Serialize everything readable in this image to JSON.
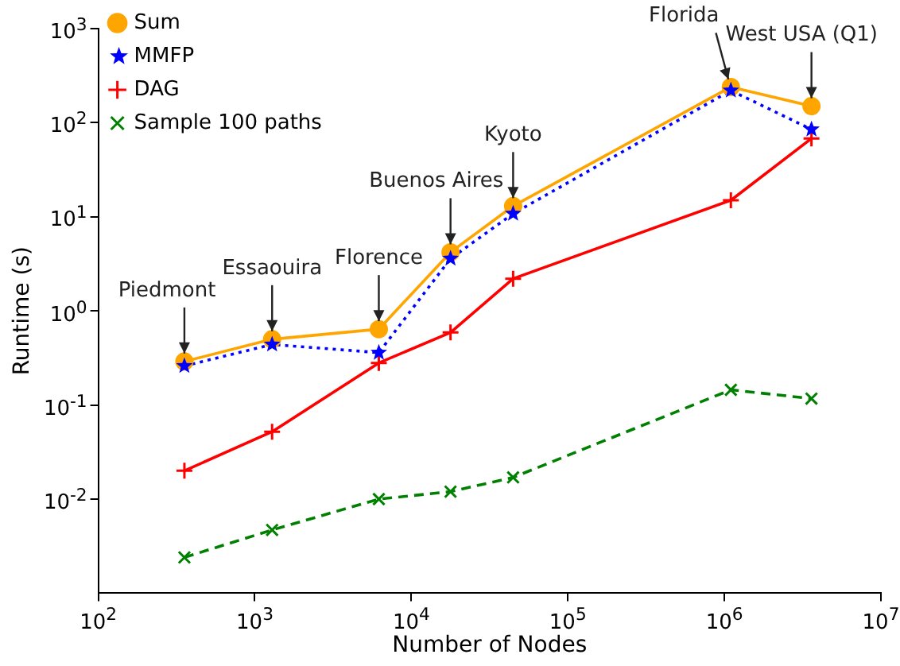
{
  "chart_data": {
    "type": "line",
    "xlabel": "Number of Nodes",
    "ylabel": "Runtime (s)",
    "log": "xy",
    "grid": false,
    "legend": "top left",
    "xlim": [
      100,
      10000000
    ],
    "xticks": [
      {
        "value": 100,
        "label": "10$^{2}$"
      },
      {
        "value": 1000,
        "label": "10$^{3}$"
      },
      {
        "value": 10000,
        "label": "10$^{4}$"
      },
      {
        "value": 100000,
        "label": "10$^{5}$"
      },
      {
        "value": 1000000,
        "label": "10$^{6}$"
      },
      {
        "value": 10000000,
        "label": "10$^{7}$"
      }
    ],
    "ylim": [
      0.001,
      1000
    ],
    "yticks": [
      {
        "value": 0.01,
        "label": "10$^{-2}$"
      },
      {
        "value": 0.1,
        "label": "10$^{-1}$"
      },
      {
        "value": 1,
        "label": "10$^{0}$"
      },
      {
        "value": 10,
        "label": "10$^{1}$"
      },
      {
        "value": 100,
        "label": "10$^{2}$"
      },
      {
        "value": 1000,
        "label": "10$^{3}$"
      }
    ],
    "x": [
      355,
      1290,
      6200,
      17800,
      44700,
      1100000,
      3600000
    ],
    "series": [
      {
        "name": "Sum",
        "color": "#ffa500",
        "marker": "circle",
        "line_style": "solid",
        "values": [
          0.29,
          0.5,
          0.64,
          4.2,
          13,
          240,
          150
        ]
      },
      {
        "name": "MMFP",
        "color": "#0000ff",
        "marker": "star",
        "line_style": "dotted",
        "values": [
          0.26,
          0.44,
          0.36,
          3.6,
          10.8,
          220,
          85
        ]
      },
      {
        "name": "DAG",
        "color": "#ff0000",
        "marker": "cross",
        "line_style": "solid",
        "values": [
          0.02,
          0.052,
          0.28,
          0.59,
          2.2,
          15,
          68
        ]
      },
      {
        "name": "Sample 100 paths",
        "color": "#008000",
        "marker": "x",
        "line_style": "dashed",
        "values": [
          0.0024,
          0.0047,
          0.01,
          0.012,
          0.017,
          0.145,
          0.117
        ]
      }
    ],
    "annotations": [
      {
        "text": "Piedmont",
        "x": 355,
        "y": 0.29
      },
      {
        "text": "Essaouira",
        "x": 1290,
        "y": 0.5
      },
      {
        "text": "Florence",
        "x": 6200,
        "y": 0.64
      },
      {
        "text": "Buenos Aires",
        "x": 17800,
        "y": 4.2
      },
      {
        "text": "Kyoto",
        "x": 44700,
        "y": 13
      },
      {
        "text": "Florida",
        "x": 1100000,
        "y": 240
      },
      {
        "text": "West USA (Q1)",
        "x": 3600000,
        "y": 150
      }
    ]
  }
}
